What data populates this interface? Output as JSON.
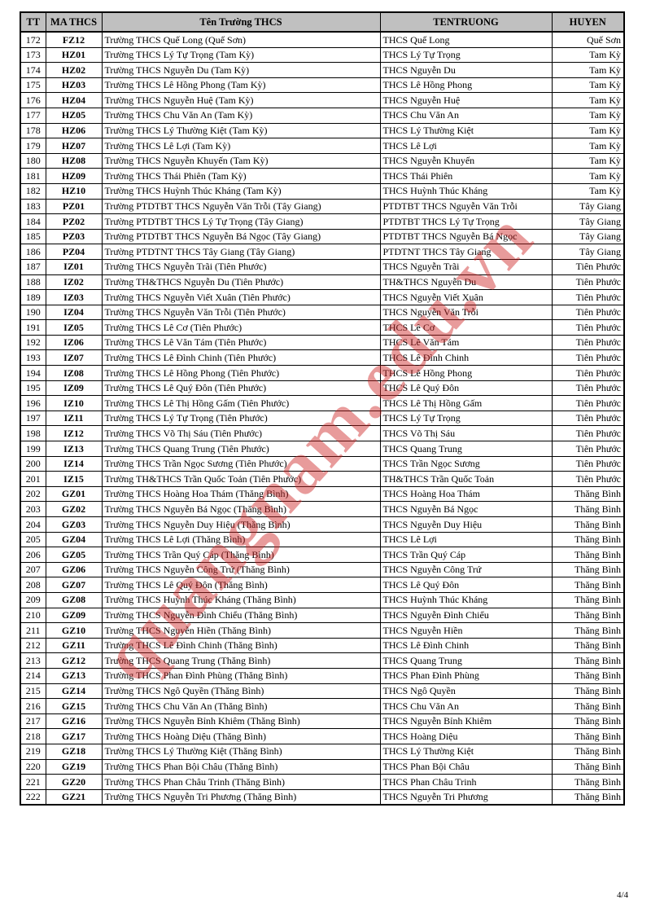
{
  "document": {
    "watermark": {
      "text": "quangnam.edu.vn",
      "color": "#cc2222"
    },
    "footer": {
      "page_indicator": "4/4"
    },
    "colors": {
      "header_bg": "#c0c0c0",
      "border": "#000000",
      "watermark_red": "#cc2222"
    },
    "table": {
      "columns": [
        {
          "key": "tt",
          "label": "TT"
        },
        {
          "key": "ma",
          "label": "MA THCS"
        },
        {
          "key": "ten",
          "label": "Tên Trường THCS"
        },
        {
          "key": "tentruong",
          "label": "TENTRUONG"
        },
        {
          "key": "huyen",
          "label": "HUYEN"
        }
      ],
      "rows": [
        [
          "172",
          "FZ12",
          "Trường THCS Quế Long (Quế Sơn)",
          "THCS Quế Long",
          "Quế Sơn"
        ],
        [
          "173",
          "HZ01",
          "Trường THCS Lý Tự Trọng (Tam Kỳ)",
          "THCS Lý Tự Trọng",
          "Tam Kỳ"
        ],
        [
          "174",
          "HZ02",
          "Trường THCS Nguyễn Du (Tam Kỳ)",
          "THCS Nguyễn Du",
          "Tam Kỳ"
        ],
        [
          "175",
          "HZ03",
          "Trường THCS Lê Hồng Phong (Tam Kỳ)",
          "THCS Lê Hồng Phong",
          "Tam Kỳ"
        ],
        [
          "176",
          "HZ04",
          "Trường THCS Nguyễn Huệ (Tam Kỳ)",
          "THCS Nguyễn Huệ",
          "Tam Kỳ"
        ],
        [
          "177",
          "HZ05",
          "Trường THCS Chu Văn An (Tam Kỳ)",
          "THCS Chu Văn An",
          "Tam Kỳ"
        ],
        [
          "178",
          "HZ06",
          "Trường THCS Lý Thường Kiệt (Tam Kỳ)",
          "THCS Lý Thường Kiệt",
          "Tam Kỳ"
        ],
        [
          "179",
          "HZ07",
          "Trường THCS Lê Lợi (Tam Kỳ)",
          "THCS Lê Lợi",
          "Tam Kỳ"
        ],
        [
          "180",
          "HZ08",
          "Trường THCS Nguyễn Khuyến (Tam Kỳ)",
          "THCS Nguyễn Khuyến",
          "Tam Kỳ"
        ],
        [
          "181",
          "HZ09",
          "Trường THCS Thái Phiên (Tam Kỳ)",
          "THCS Thái Phiên",
          "Tam Kỳ"
        ],
        [
          "182",
          "HZ10",
          "Trường THCS Huỳnh Thúc Kháng (Tam Kỳ)",
          "THCS Huỳnh Thúc Kháng",
          "Tam Kỳ"
        ],
        [
          "183",
          "PZ01",
          "Trường PTDTBT THCS Nguyễn Văn Trỗi (Tây Giang)",
          "PTDTBT THCS Nguyễn Văn Trỗi",
          "Tây Giang"
        ],
        [
          "184",
          "PZ02",
          "Trường PTDTBT THCS Lý Tự Trọng (Tây Giang)",
          "PTDTBT THCS Lý Tự Trọng",
          "Tây Giang"
        ],
        [
          "185",
          "PZ03",
          "Trường PTDTBT THCS Nguyễn Bá Ngọc (Tây Giang)",
          "PTDTBT THCS Nguyễn Bá Ngọc",
          "Tây Giang"
        ],
        [
          "186",
          "PZ04",
          "Trường PTDTNT THCS Tây Giang (Tây Giang)",
          "PTDTNT THCS Tây Giang",
          "Tây Giang"
        ],
        [
          "187",
          "IZ01",
          "Trường THCS Nguyễn Trãi (Tiên Phước)",
          "THCS Nguyễn Trãi",
          "Tiên Phước"
        ],
        [
          "188",
          "IZ02",
          "Trường TH&THCS Nguyễn Du (Tiên Phước)",
          "TH&THCS Nguyễn Du",
          "Tiên Phước"
        ],
        [
          "189",
          "IZ03",
          "Trường THCS Nguyễn Viết Xuân (Tiên Phước)",
          "THCS Nguyễn Viết Xuân",
          "Tiên Phước"
        ],
        [
          "190",
          "IZ04",
          "Trường THCS Nguyễn Văn Trỗi (Tiên Phước)",
          "THCS Nguyễn Văn Trỗi",
          "Tiên Phước"
        ],
        [
          "191",
          "IZ05",
          "Trường THCS Lê Cơ (Tiên Phước)",
          "THCS Lê Cơ",
          "Tiên Phước"
        ],
        [
          "192",
          "IZ06",
          "Trường THCS Lê Văn Tám (Tiên Phước)",
          "THCS Lê Văn Tám",
          "Tiên Phước"
        ],
        [
          "193",
          "IZ07",
          "Trường THCS Lê Đình Chinh (Tiên Phước)",
          "THCS Lê Đình Chinh",
          "Tiên Phước"
        ],
        [
          "194",
          "IZ08",
          "Trường THCS Lê Hồng Phong (Tiên Phước)",
          "THCS Lê Hồng Phong",
          "Tiên Phước"
        ],
        [
          "195",
          "IZ09",
          "Trường THCS Lê Quý Đôn (Tiên Phước)",
          "THCS Lê Quý Đôn",
          "Tiên Phước"
        ],
        [
          "196",
          "IZ10",
          "Trường THCS Lê Thị Hồng Gấm (Tiên Phước)",
          "THCS Lê Thị Hồng Gấm",
          "Tiên Phước"
        ],
        [
          "197",
          "IZ11",
          "Trường THCS Lý Tự Trọng (Tiên Phước)",
          "THCS Lý Tự Trọng",
          "Tiên Phước"
        ],
        [
          "198",
          "IZ12",
          "Trường THCS Võ Thị Sáu (Tiên Phước)",
          "THCS Võ Thị Sáu",
          "Tiên Phước"
        ],
        [
          "199",
          "IZ13",
          "Trường THCS Quang Trung (Tiên Phước)",
          "THCS Quang Trung",
          "Tiên Phước"
        ],
        [
          "200",
          "IZ14",
          "Trường THCS Trần Ngọc Sương (Tiên Phước)",
          "THCS Trần Ngọc Sương",
          "Tiên Phước"
        ],
        [
          "201",
          "IZ15",
          "Trường TH&THCS Trần Quốc Toản (Tiên Phước)",
          "TH&THCS Trần Quốc Toản",
          "Tiên Phước"
        ],
        [
          "202",
          "GZ01",
          "Trường THCS Hoàng Hoa Thám (Thăng Bình)",
          "THCS Hoàng Hoa Thám",
          "Thăng Bình"
        ],
        [
          "203",
          "GZ02",
          "Trường THCS Nguyễn Bá Ngọc (Thăng Bình)",
          "THCS Nguyễn Bá Ngọc",
          "Thăng Bình"
        ],
        [
          "204",
          "GZ03",
          "Trường THCS Nguyễn Duy Hiệu (Thăng Bình)",
          "THCS Nguyễn Duy Hiệu",
          "Thăng Bình"
        ],
        [
          "205",
          "GZ04",
          "Trường THCS Lê Lợi (Thăng Bình)",
          "THCS Lê Lợi",
          "Thăng Bình"
        ],
        [
          "206",
          "GZ05",
          "Trường THCS Trần Quý Cáp (Thăng Bình)",
          "THCS Trần Quý Cáp",
          "Thăng Bình"
        ],
        [
          "207",
          "GZ06",
          "Trường THCS Nguyễn Công Trứ (Thăng Bình)",
          "THCS Nguyễn Công Trứ",
          "Thăng Bình"
        ],
        [
          "208",
          "GZ07",
          "Trường THCS Lê Quý Đôn (Thăng Bình)",
          "THCS Lê Quý Đôn",
          "Thăng Bình"
        ],
        [
          "209",
          "GZ08",
          "Trường THCS Huỳnh Thúc Kháng (Thăng Bình)",
          "THCS Huỳnh Thúc Kháng",
          "Thăng Bình"
        ],
        [
          "210",
          "GZ09",
          "Trường THCS Nguyễn Đình Chiểu (Thăng Bình)",
          "THCS Nguyễn Đình Chiểu",
          "Thăng Bình"
        ],
        [
          "211",
          "GZ10",
          "Trường THCS Nguyễn Hiền (Thăng Bình)",
          "THCS Nguyễn Hiền",
          "Thăng Bình"
        ],
        [
          "212",
          "GZ11",
          "Trường THCS Lê Đình Chinh (Thăng Bình)",
          "THCS Lê Đình Chinh",
          "Thăng Bình"
        ],
        [
          "213",
          "GZ12",
          "Trường THCS Quang Trung (Thăng Bình)",
          "THCS Quang Trung",
          "Thăng Bình"
        ],
        [
          "214",
          "GZ13",
          "Trường THCS Phan Đình Phùng (Thăng Bình)",
          "THCS Phan Đình Phùng",
          "Thăng Bình"
        ],
        [
          "215",
          "GZ14",
          "Trường THCS Ngô Quyền (Thăng Bình)",
          "THCS Ngô Quyền",
          "Thăng Bình"
        ],
        [
          "216",
          "GZ15",
          "Trường THCS Chu Văn An (Thăng Bình)",
          "THCS Chu Văn An",
          "Thăng Bình"
        ],
        [
          "217",
          "GZ16",
          "Trường THCS Nguyễn Bỉnh Khiêm (Thăng Bình)",
          "THCS Nguyễn Bỉnh Khiêm",
          "Thăng Bình"
        ],
        [
          "218",
          "GZ17",
          "Trường THCS Hoàng Diệu (Thăng Bình)",
          "THCS Hoàng Diệu",
          "Thăng Bình"
        ],
        [
          "219",
          "GZ18",
          "Trường THCS Lý Thường Kiệt (Thăng Bình)",
          "THCS Lý Thường Kiệt",
          "Thăng Bình"
        ],
        [
          "220",
          "GZ19",
          "Trường THCS Phan Bội Châu (Thăng Bình)",
          "THCS Phan Bội Châu",
          "Thăng Bình"
        ],
        [
          "221",
          "GZ20",
          "Trường THCS Phan Châu Trinh (Thăng Bình)",
          "THCS Phan Châu Trinh",
          "Thăng Bình"
        ],
        [
          "222",
          "GZ21",
          "Trường THCS Nguyễn Tri Phương (Thăng Bình)",
          "THCS Nguyễn Tri Phương",
          "Thăng Bình"
        ]
      ]
    }
  }
}
